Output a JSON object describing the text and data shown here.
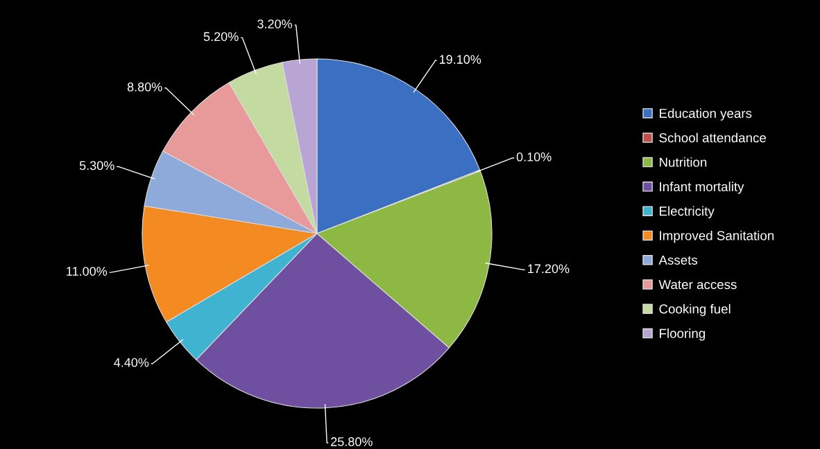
{
  "chart_data": {
    "type": "pie",
    "categories": [
      "Education years",
      "School attendance",
      "Nutrition",
      "Infant mortality",
      "Electricity",
      "Improved Sanitation",
      "Assets",
      "Water access",
      "Cooking fuel",
      "Flooring"
    ],
    "values": [
      19.1,
      0.1,
      17.2,
      25.8,
      4.4,
      11.0,
      5.3,
      8.8,
      5.2,
      3.2
    ],
    "value_labels": [
      "19.10%",
      "0.10%",
      "17.20%",
      "25.80%",
      "4.40%",
      "11.00%",
      "5.30%",
      "8.80%",
      "5.20%",
      "3.20%"
    ],
    "colors": [
      "#3b6fc1",
      "#c0504d",
      "#8cb843",
      "#6f4f9f",
      "#3fb3cf",
      "#f48a22",
      "#8eaadb",
      "#e79a99",
      "#c3dba0",
      "#b8a5d4"
    ],
    "legend": "right"
  }
}
